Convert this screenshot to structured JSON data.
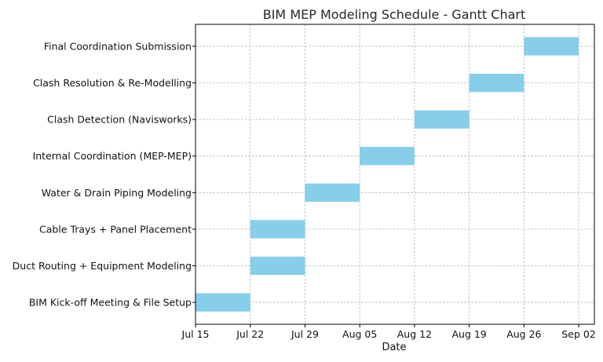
{
  "chart_data": {
    "type": "gantt",
    "title": "BIM MEP Modeling Schedule - Gantt Chart",
    "xlabel": "Date",
    "ylabel": "",
    "xlim": [
      "2024-07-15",
      "2024-09-04"
    ],
    "x_ticks": [
      {
        "date": "2024-07-15",
        "label": "Jul 15"
      },
      {
        "date": "2024-07-22",
        "label": "Jul 22"
      },
      {
        "date": "2024-07-29",
        "label": "Jul 29"
      },
      {
        "date": "2024-08-05",
        "label": "Aug 05"
      },
      {
        "date": "2024-08-12",
        "label": "Aug 12"
      },
      {
        "date": "2024-08-19",
        "label": "Aug 19"
      },
      {
        "date": "2024-08-26",
        "label": "Aug 26"
      },
      {
        "date": "2024-09-02",
        "label": "Sep 02"
      }
    ],
    "grid": true,
    "bar_color": "#87CEEB",
    "tasks": [
      {
        "name": "BIM Kick-off Meeting & File Setup",
        "start": "2024-07-15",
        "end": "2024-07-22"
      },
      {
        "name": "Duct Routing + Equipment Modeling",
        "start": "2024-07-22",
        "end": "2024-07-29"
      },
      {
        "name": "Cable Trays + Panel Placement",
        "start": "2024-07-22",
        "end": "2024-07-29"
      },
      {
        "name": "Water & Drain Piping Modeling",
        "start": "2024-07-29",
        "end": "2024-08-05"
      },
      {
        "name": "Internal Coordination (MEP-MEP)",
        "start": "2024-08-05",
        "end": "2024-08-12"
      },
      {
        "name": "Clash Detection (Navisworks)",
        "start": "2024-08-12",
        "end": "2024-08-19"
      },
      {
        "name": "Clash Resolution & Re-Modelling",
        "start": "2024-08-19",
        "end": "2024-08-26"
      },
      {
        "name": "Final Coordination Submission",
        "start": "2024-08-26",
        "end": "2024-09-02"
      }
    ]
  }
}
